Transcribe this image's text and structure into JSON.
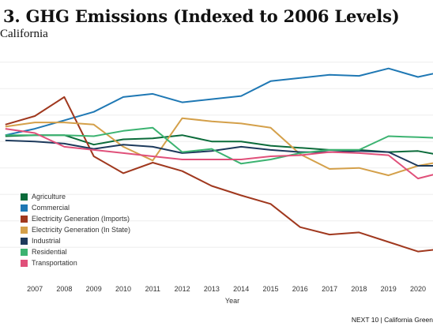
{
  "chart_data": {
    "type": "line",
    "title": "3. GHG Emissions (Indexed to 2006 Levels)",
    "subtitle": "California",
    "xlabel": "Year",
    "ylabel": "",
    "x": [
      2006,
      2007,
      2008,
      2009,
      2010,
      2011,
      2012,
      2013,
      2014,
      2015,
      2016,
      2017,
      2018,
      2019,
      2020,
      2021
    ],
    "x_tick_labels": [
      "2007",
      "2008",
      "2009",
      "2010",
      "2011",
      "2012",
      "2013",
      "2014",
      "2015",
      "2016",
      "2017",
      "2018",
      "2019",
      "2020",
      "2021"
    ],
    "grid": "horizontal",
    "legend_position": "left",
    "series": [
      {
        "name": "Agriculture",
        "color": "#0b6b3a",
        "values": [
          102.5,
          103,
          103,
          98.5,
          101,
          101.5,
          103,
          100,
          100,
          98,
          97,
          96,
          96,
          95,
          95.5,
          93
        ]
      },
      {
        "name": "Commercial",
        "color": "#1f78b4",
        "values": [
          103,
          106,
          110,
          114,
          121,
          122.5,
          118.5,
          120,
          121.5,
          128.5,
          130,
          131.5,
          131,
          134.5,
          130.5,
          133.5
        ]
      },
      {
        "name": "Electricity Generation (Imports)",
        "color": "#a0381e",
        "values": [
          108,
          112,
          121,
          93,
          85,
          90,
          86,
          79,
          74.5,
          70.5,
          59.5,
          56,
          57,
          52.5,
          48,
          49.5
        ]
      },
      {
        "name": "Electricity Generation (In State)",
        "color": "#d4a04a",
        "values": [
          107,
          109,
          109,
          108,
          97.5,
          91,
          111,
          109.5,
          108.5,
          106.5,
          94,
          87,
          87.5,
          84,
          88.5,
          91
        ]
      },
      {
        "name": "Industrial",
        "color": "#1d3a5c",
        "values": [
          100.5,
          100,
          99,
          96.5,
          98.5,
          97.5,
          94.5,
          95.5,
          97.5,
          96,
          95,
          95,
          95.5,
          95,
          88.5,
          88.5
        ]
      },
      {
        "name": "Residential",
        "color": "#3cb371",
        "values": [
          103,
          103,
          103,
          102.5,
          105,
          106.5,
          95,
          96.5,
          89.5,
          91.5,
          94.5,
          96,
          96,
          102.5,
          102,
          101.5
        ]
      },
      {
        "name": "Transportation",
        "color": "#e0507a",
        "values": [
          106,
          104,
          97.5,
          96,
          94.5,
          93,
          91.5,
          91.5,
          91.5,
          93,
          93.5,
          95,
          94.5,
          93.5,
          82.5,
          86
        ]
      }
    ]
  },
  "footer": "NEXT 10 | California Green"
}
